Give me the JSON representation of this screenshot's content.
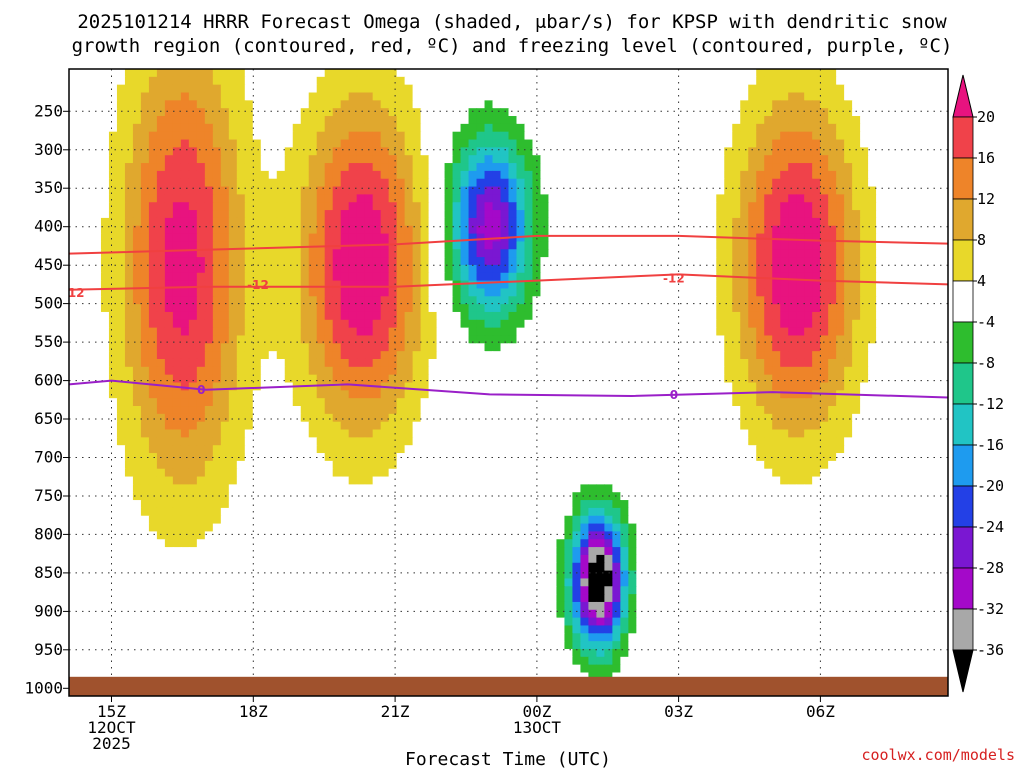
{
  "chart_data": {
    "type": "heatmap",
    "title_lines": [
      "2025101214 HRRR Forecast Omega (shaded, μbar/s) for KPSP with dendritic snow",
      "growth region (contoured, red, ºC) and freezing level (contoured, purple, ºC)"
    ],
    "xlabel": "Forecast Time (UTC)",
    "credit": "coolwx.com/models",
    "x_range_hours": [
      14.1,
      32.7
    ],
    "y_range_hpa": [
      1010,
      195
    ],
    "y_ticks": [
      250,
      300,
      350,
      400,
      450,
      500,
      550,
      600,
      650,
      700,
      750,
      800,
      850,
      900,
      950,
      1000
    ],
    "x_ticks": [
      {
        "hour": 15,
        "lines": [
          "15Z",
          "12OCT",
          "2025"
        ]
      },
      {
        "hour": 18,
        "lines": [
          "18Z"
        ]
      },
      {
        "hour": 21,
        "lines": [
          "21Z"
        ]
      },
      {
        "hour": 24,
        "lines": [
          "00Z",
          "13OCT"
        ]
      },
      {
        "hour": 27,
        "lines": [
          "03Z"
        ]
      },
      {
        "hour": 30,
        "lines": [
          "06Z"
        ]
      }
    ],
    "colorbar": {
      "labels": [
        "20",
        "16",
        "12",
        "8",
        "4",
        "-4",
        "-8",
        "-12",
        "-16",
        "-20",
        "-24",
        "-28",
        "-32",
        "-36"
      ],
      "colors": [
        "#e8137f",
        "#f0424a",
        "#ee8429",
        "#e0a82e",
        "#e8d82a",
        "#ffffff",
        "#2ebd2e",
        "#1fc68a",
        "#21c4c4",
        "#1e9bef",
        "#2340e6",
        "#7a17d2",
        "#a409c9",
        "#a8a8a8",
        "#000000"
      ],
      "top_arrow_color": "#e8137f",
      "bottom_arrow_color": "#000000"
    },
    "levels": [
      -36,
      -32,
      -28,
      -24,
      -20,
      -16,
      -12,
      -8,
      -4,
      4,
      8,
      12,
      16,
      20
    ],
    "omega_features": [
      {
        "name": "upper-left ascent plume",
        "hour": 16.5,
        "hpa": 450,
        "peak": 22,
        "sx": 0.9,
        "sy": 200
      },
      {
        "name": "tilted ascent band",
        "hour": 20.3,
        "hpa": 450,
        "peak": 24,
        "sx": 0.9,
        "sy": 150
      },
      {
        "name": "mid descent core",
        "hour": 23.0,
        "hpa": 400,
        "peak": -30,
        "sx": 0.6,
        "sy": 80
      },
      {
        "name": "right ascent area",
        "hour": 29.5,
        "hpa": 450,
        "peak": 24,
        "sx": 0.9,
        "sy": 150
      },
      {
        "name": "low level descent core",
        "hour": 25.3,
        "hpa": 860,
        "peak": -42,
        "sx": 0.4,
        "sy": 60
      }
    ],
    "dgz_contour": {
      "value": -12,
      "label": "-12",
      "color": "#f04040",
      "upper_line": [
        {
          "hour": 14.1,
          "hpa": 435
        },
        {
          "hour": 17,
          "hpa": 430
        },
        {
          "hour": 21,
          "hpa": 423
        },
        {
          "hour": 24,
          "hpa": 412
        },
        {
          "hour": 27,
          "hpa": 412
        },
        {
          "hour": 30,
          "hpa": 418
        },
        {
          "hour": 32.7,
          "hpa": 422
        }
      ],
      "lower_line": [
        {
          "hour": 14.1,
          "hpa": 482
        },
        {
          "hour": 17,
          "hpa": 478
        },
        {
          "hour": 21,
          "hpa": 478
        },
        {
          "hour": 24,
          "hpa": 470
        },
        {
          "hour": 27,
          "hpa": 462
        },
        {
          "hour": 30,
          "hpa": 470
        },
        {
          "hour": 32.7,
          "hpa": 475
        }
      ],
      "label_points": [
        {
          "hour": 14.2,
          "hpa": 486
        },
        {
          "hour": 18.1,
          "hpa": 476
        },
        {
          "hour": 26.9,
          "hpa": 467
        }
      ]
    },
    "freezing_contour": {
      "value": 0,
      "label": "0",
      "color": "#9a1fc8",
      "line": [
        {
          "hour": 14.1,
          "hpa": 605
        },
        {
          "hour": 15,
          "hpa": 600
        },
        {
          "hour": 17,
          "hpa": 612
        },
        {
          "hour": 20,
          "hpa": 605
        },
        {
          "hour": 23,
          "hpa": 618
        },
        {
          "hour": 26,
          "hpa": 620
        },
        {
          "hour": 29,
          "hpa": 615
        },
        {
          "hour": 32.7,
          "hpa": 622
        }
      ],
      "label_points": [
        {
          "hour": 16.9,
          "hpa": 612
        },
        {
          "hour": 26.9,
          "hpa": 619
        }
      ]
    },
    "terrain": {
      "top_hpa": 985,
      "color": "#a0522d"
    }
  }
}
